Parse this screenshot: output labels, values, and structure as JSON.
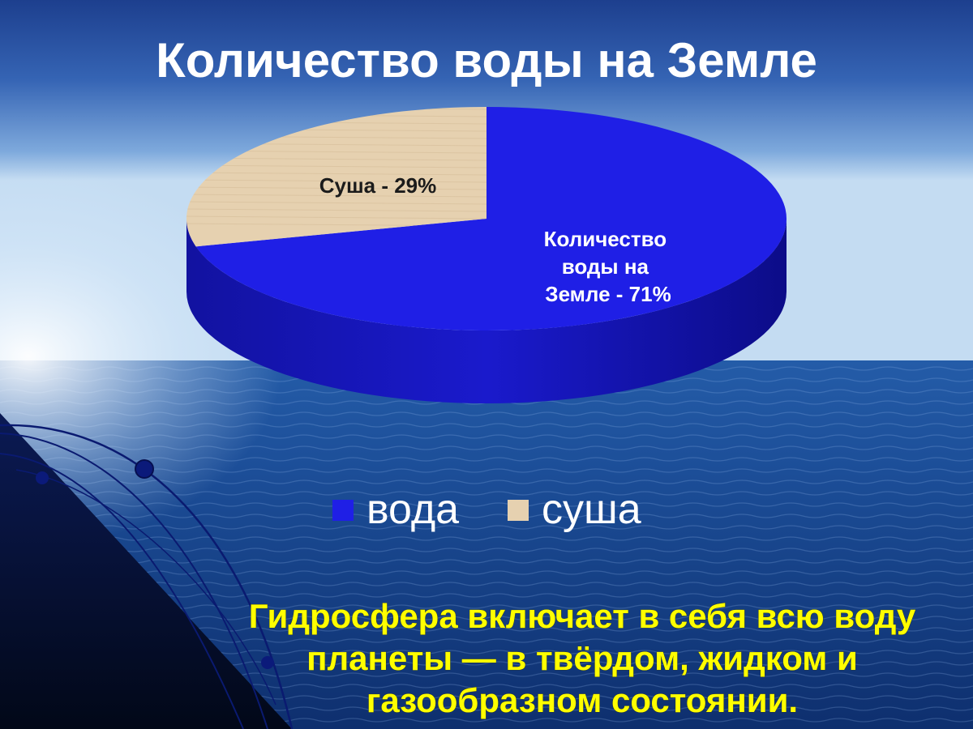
{
  "colors": {
    "water": "#1f1fe6",
    "land": "#e6d1b0",
    "caption": "#ffff00"
  },
  "chart_data": {
    "type": "pie",
    "title": "Количество воды на Земле",
    "slices": [
      {
        "legend": "вода",
        "label_lines": [
          "Количество",
          "воды на",
          "Земле -  71%"
        ],
        "value": 71
      },
      {
        "legend": "суша",
        "label_lines": [
          "Суша - 29%"
        ],
        "value": 29
      }
    ],
    "legend_position": "bottom",
    "style": "3d"
  },
  "caption_lines": [
    "Гидросфера включает в себя всю воду",
    "планеты — в твёрдом, жидком и",
    "газообразном состоянии."
  ]
}
